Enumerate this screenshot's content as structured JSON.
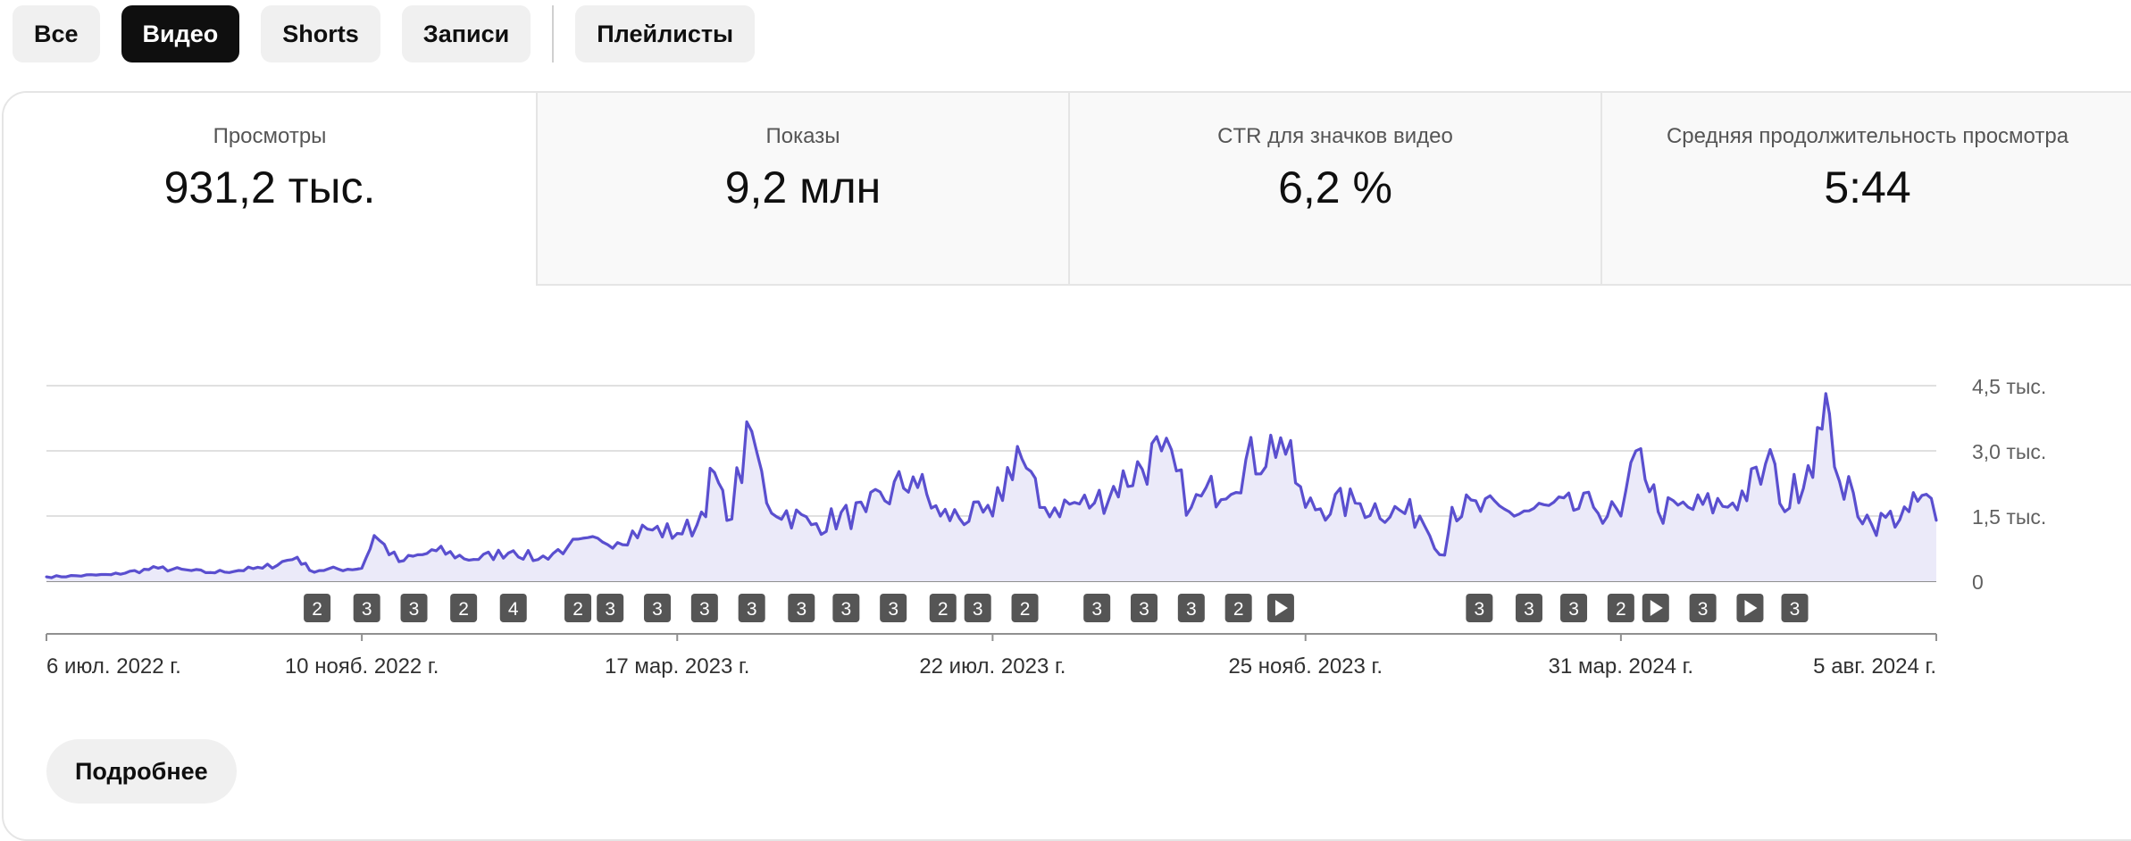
{
  "tabs": [
    {
      "label": "Все",
      "active": false
    },
    {
      "label": "Видео",
      "active": true
    },
    {
      "label": "Shorts",
      "active": false
    },
    {
      "label": "Записи",
      "active": false
    },
    {
      "label": "Плейлисты",
      "active": false
    }
  ],
  "metrics": [
    {
      "label": "Просмотры",
      "value": "931,2 тыс."
    },
    {
      "label": "Показы",
      "value": "9,2 млн"
    },
    {
      "label": "CTR для значков видео",
      "value": "6,2 %"
    },
    {
      "label": "Средняя продолжительность просмотра",
      "value": "5:44"
    }
  ],
  "more_button": "Подробнее",
  "colors": {
    "line": "#5a4fcf",
    "fill": "#ebeaf9",
    "marker": "#555555",
    "grid": "#e0e0e0"
  },
  "chart_data": {
    "type": "line",
    "x_range": [
      "2022-07-06",
      "2024-08-05"
    ],
    "y_ticks": [
      "4,5 тыс.",
      "3,0 тыс.",
      "1,5 тыс.",
      "0"
    ],
    "y_tick_values": [
      4500,
      3000,
      1500,
      0
    ],
    "ylim": [
      0,
      4500
    ],
    "x_ticks": [
      "6 июл. 2022 г.",
      "10 нояб. 2022 г.",
      "17 мар. 2023 г.",
      "22 июл. 2023 г.",
      "25 нояб. 2023 г.",
      "31 мар. 2024 г.",
      "5 авг. 2024 г."
    ],
    "x_tick_dates": [
      "2022-07-06",
      "2022-11-10",
      "2023-03-17",
      "2023-07-22",
      "2023-11-25",
      "2024-03-31",
      "2024-08-05"
    ],
    "grid": true,
    "series": [
      {
        "values": [
          {
            "x": "2022-07-06",
            "y": 100
          },
          {
            "x": "2022-08-01",
            "y": 150
          },
          {
            "x": "2022-08-20",
            "y": 300
          },
          {
            "x": "2022-09-10",
            "y": 200
          },
          {
            "x": "2022-10-01",
            "y": 300
          },
          {
            "x": "2022-10-15",
            "y": 550
          },
          {
            "x": "2022-10-20",
            "y": 250
          },
          {
            "x": "2022-11-10",
            "y": 300
          },
          {
            "x": "2022-11-15",
            "y": 1050
          },
          {
            "x": "2022-11-25",
            "y": 450
          },
          {
            "x": "2022-12-10",
            "y": 700
          },
          {
            "x": "2022-12-25",
            "y": 500
          },
          {
            "x": "2023-01-10",
            "y": 700
          },
          {
            "x": "2023-01-20",
            "y": 500
          },
          {
            "x": "2023-02-01",
            "y": 800
          },
          {
            "x": "2023-02-15",
            "y": 900
          },
          {
            "x": "2023-03-05",
            "y": 1200
          },
          {
            "x": "2023-03-17",
            "y": 1100
          },
          {
            "x": "2023-03-25",
            "y": 1300
          },
          {
            "x": "2023-04-01",
            "y": 2500
          },
          {
            "x": "2023-04-06",
            "y": 1400
          },
          {
            "x": "2023-04-16",
            "y": 3450
          },
          {
            "x": "2023-04-22",
            "y": 1800
          },
          {
            "x": "2023-05-10",
            "y": 1300
          },
          {
            "x": "2023-06-01",
            "y": 1600
          },
          {
            "x": "2023-06-20",
            "y": 2400
          },
          {
            "x": "2023-07-01",
            "y": 1500
          },
          {
            "x": "2023-07-22",
            "y": 1500
          },
          {
            "x": "2023-08-01",
            "y": 3100
          },
          {
            "x": "2023-08-10",
            "y": 1700
          },
          {
            "x": "2023-09-01",
            "y": 1800
          },
          {
            "x": "2023-09-28",
            "y": 3000
          },
          {
            "x": "2023-10-10",
            "y": 1700
          },
          {
            "x": "2023-11-15",
            "y": 3300
          },
          {
            "x": "2023-11-25",
            "y": 1700
          },
          {
            "x": "2023-12-15",
            "y": 1800
          },
          {
            "x": "2024-01-10",
            "y": 1500
          },
          {
            "x": "2024-01-20",
            "y": 600
          },
          {
            "x": "2024-01-23",
            "y": 1700
          },
          {
            "x": "2024-02-15",
            "y": 1600
          },
          {
            "x": "2024-03-20",
            "y": 1700
          },
          {
            "x": "2024-03-31",
            "y": 1500
          },
          {
            "x": "2024-04-08",
            "y": 3050
          },
          {
            "x": "2024-04-15",
            "y": 1600
          },
          {
            "x": "2024-05-15",
            "y": 1800
          },
          {
            "x": "2024-06-01",
            "y": 2700
          },
          {
            "x": "2024-06-05",
            "y": 1600
          },
          {
            "x": "2024-06-20",
            "y": 3500
          },
          {
            "x": "2024-06-23",
            "y": 3850
          },
          {
            "x": "2024-06-27",
            "y": 2300
          },
          {
            "x": "2024-07-10",
            "y": 1300
          },
          {
            "x": "2024-07-25",
            "y": 1600
          },
          {
            "x": "2024-08-01",
            "y": 2000
          },
          {
            "x": "2024-08-05",
            "y": 1400
          }
        ]
      }
    ],
    "markers": [
      {
        "date": "2022-10-23",
        "label": "2"
      },
      {
        "date": "2022-11-12",
        "label": "3"
      },
      {
        "date": "2022-12-01",
        "label": "3"
      },
      {
        "date": "2022-12-21",
        "label": "2"
      },
      {
        "date": "2023-01-10",
        "label": "4"
      },
      {
        "date": "2023-02-05",
        "label": "2"
      },
      {
        "date": "2023-02-18",
        "label": "3"
      },
      {
        "date": "2023-03-09",
        "label": "3"
      },
      {
        "date": "2023-03-28",
        "label": "3"
      },
      {
        "date": "2023-04-16",
        "label": "3"
      },
      {
        "date": "2023-05-06",
        "label": "3"
      },
      {
        "date": "2023-05-24",
        "label": "3"
      },
      {
        "date": "2023-06-12",
        "label": "3"
      },
      {
        "date": "2023-07-02",
        "label": "2"
      },
      {
        "date": "2023-07-16",
        "label": "3"
      },
      {
        "date": "2023-08-04",
        "label": "2"
      },
      {
        "date": "2023-09-02",
        "label": "3"
      },
      {
        "date": "2023-09-21",
        "label": "3"
      },
      {
        "date": "2023-10-10",
        "label": "3"
      },
      {
        "date": "2023-10-29",
        "label": "2"
      },
      {
        "date": "2023-11-15",
        "label": "play"
      },
      {
        "date": "2024-02-03",
        "label": "3"
      },
      {
        "date": "2024-02-23",
        "label": "3"
      },
      {
        "date": "2024-03-12",
        "label": "3"
      },
      {
        "date": "2024-03-31",
        "label": "2"
      },
      {
        "date": "2024-04-14",
        "label": "play"
      },
      {
        "date": "2024-05-03",
        "label": "3"
      },
      {
        "date": "2024-05-22",
        "label": "play"
      },
      {
        "date": "2024-06-09",
        "label": "3"
      }
    ]
  }
}
